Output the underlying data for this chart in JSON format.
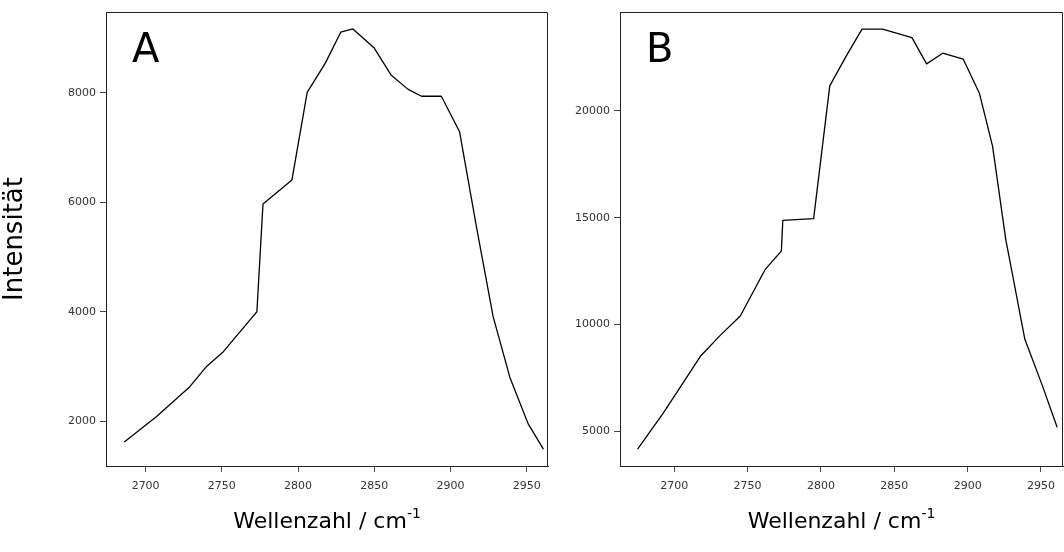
{
  "chart_data": [
    {
      "type": "line",
      "title": "A",
      "xlabel": "Wellenzahl / cm$^{-1}$",
      "ylabel": "Intensität",
      "grid": false,
      "legend": false,
      "marker": "none",
      "line_style": "solid",
      "xlim": [
        2674,
        2964
      ],
      "ylim": [
        1180,
        9480
      ],
      "xticks": [
        2700,
        2750,
        2800,
        2850,
        2900,
        2950
      ],
      "yticks": [
        2000,
        4000,
        6000,
        8000
      ],
      "series": [
        {
          "color": "#000000",
          "x": [
            2686,
            2707,
            2729,
            2740,
            2751,
            2773,
            2777,
            2796,
            2806,
            2818,
            2828,
            2836,
            2850,
            2861,
            2872,
            2881,
            2894,
            2906,
            2917,
            2928,
            2939,
            2951,
            2961
          ],
          "values": [
            1620,
            2080,
            2630,
            3000,
            3270,
            4000,
            5970,
            6410,
            8010,
            8550,
            9110,
            9170,
            8820,
            8330,
            8070,
            7940,
            7940,
            7290,
            5560,
            3910,
            2800,
            1950,
            1490
          ]
        }
      ]
    },
    {
      "type": "line",
      "title": "B",
      "xlabel": "Wellenzahl / cm$^{-1}$",
      "grid": false,
      "legend": false,
      "marker": "none",
      "line_style": "solid",
      "xlim": [
        2663,
        2965
      ],
      "ylim": [
        3380,
        24630
      ],
      "xticks": [
        2700,
        2750,
        2800,
        2850,
        2900,
        2950
      ],
      "yticks": [
        5000,
        10000,
        15000,
        20000
      ],
      "series": [
        {
          "color": "#000000",
          "x": [
            2675,
            2692,
            2704,
            2718,
            2731,
            2745,
            2762,
            2773,
            2774,
            2795,
            2806,
            2817,
            2828,
            2842,
            2862,
            2872,
            2883,
            2897,
            2908,
            2917,
            2926,
            2939,
            2951,
            2961
          ],
          "values": [
            4170,
            5810,
            7060,
            8530,
            9470,
            10400,
            12580,
            13440,
            14880,
            14960,
            21170,
            22540,
            23830,
            23830,
            23430,
            22200,
            22700,
            22420,
            20830,
            18340,
            13980,
            9310,
            7130,
            5190
          ]
        }
      ]
    }
  ]
}
